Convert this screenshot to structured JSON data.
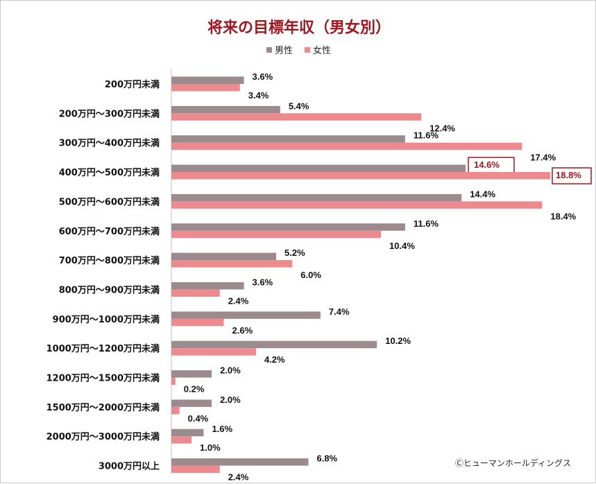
{
  "colors": {
    "male": "#9b8a8e",
    "female": "#ec8a8f",
    "title": "#a3151e",
    "highlight_box": "#a3151e"
  },
  "credit": "Ⓒヒューマンホールディングス",
  "chart_data": {
    "type": "bar",
    "orientation": "horizontal",
    "title": "将来の目標年収（男女別）",
    "legend": [
      "男性",
      "女性"
    ],
    "legend_position": "top-center",
    "xlim": [
      0,
      19
    ],
    "grid": false,
    "categories": [
      "200万円未満",
      "200万円～300万円未満",
      "300万円～400万円未満",
      "400万円～500万円未満",
      "500万円～600万円未満",
      "600万円～700万円未満",
      "700万円～800万円未満",
      "800万円～900万円未満",
      "900万円～1000万円未満",
      "1000万円～1200万円未満",
      "1200万円～1500万円未満",
      "1500万円～2000万円未満",
      "2000万円～3000万円未満",
      "3000万円以上"
    ],
    "series": [
      {
        "name": "男性",
        "values": [
          3.6,
          5.4,
          11.6,
          14.6,
          14.4,
          11.6,
          5.2,
          3.6,
          7.4,
          10.2,
          2.0,
          2.0,
          1.6,
          6.8
        ],
        "labels": [
          "3.6%",
          "5.4%",
          "11.6%",
          "14.6%",
          "14.4%",
          "11.6%",
          "5.2%",
          "3.6%",
          "7.4%",
          "10.2%",
          "2.0%",
          "2.0%",
          "1.6%",
          "6.8%"
        ]
      },
      {
        "name": "女性",
        "values": [
          3.4,
          12.4,
          17.4,
          18.8,
          18.4,
          10.4,
          6.0,
          2.4,
          2.6,
          4.2,
          0.2,
          0.4,
          1.0,
          2.4
        ],
        "labels": [
          "3.4%",
          "12.4%",
          "17.4%",
          "18.8%",
          "18.4%",
          "10.4%",
          "6.0%",
          "2.4%",
          "2.6%",
          "4.2%",
          "0.2%",
          "0.4%",
          "1.0%",
          "2.4%"
        ]
      }
    ],
    "highlighted_category": "400万円～500万円未満"
  }
}
